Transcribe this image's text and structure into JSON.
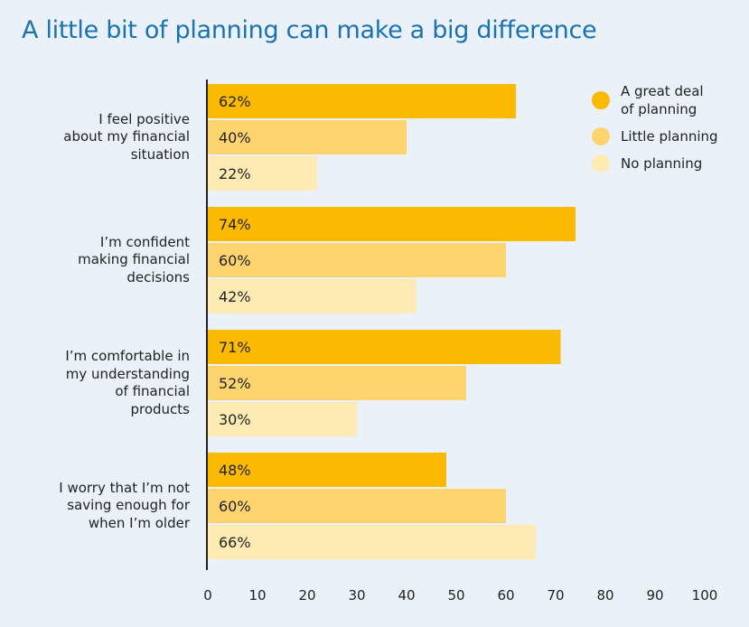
{
  "title": "A little bit of planning can make a big difference",
  "legend": [
    {
      "label": "A great deal\nof planning",
      "color": "#fbb900"
    },
    {
      "label": "Little planning",
      "color": "#fdd46e"
    },
    {
      "label": "No planning",
      "color": "#feebb4"
    }
  ],
  "chart_data": {
    "type": "bar",
    "orientation": "horizontal",
    "title": "A little bit of planning can make a big difference",
    "categories": [
      "I feel positive\nabout my financial\nsituation",
      "I’m confident\nmaking financial\ndecisions",
      "I’m comfortable in\nmy understanding\nof financial\nproducts",
      "I worry that I’m not\nsaving enough for\nwhen I’m older"
    ],
    "series": [
      {
        "name": "A great deal of planning",
        "values": [
          62,
          74,
          71,
          48
        ],
        "labels": [
          "62%",
          "74%",
          "71%",
          "48%"
        ]
      },
      {
        "name": "Little planning",
        "values": [
          40,
          60,
          52,
          60
        ],
        "labels": [
          "40%",
          "60%",
          "52%",
          "60%"
        ]
      },
      {
        "name": "No planning",
        "values": [
          22,
          42,
          30,
          66
        ],
        "labels": [
          "22%",
          "42%",
          "30%",
          "66%"
        ]
      }
    ],
    "xlim": [
      0,
      100
    ],
    "xticks": [
      "0",
      "10",
      "20",
      "30",
      "40",
      "50",
      "60",
      "70",
      "80",
      "90",
      "100"
    ],
    "legend_position": "top-right",
    "grid": false
  }
}
